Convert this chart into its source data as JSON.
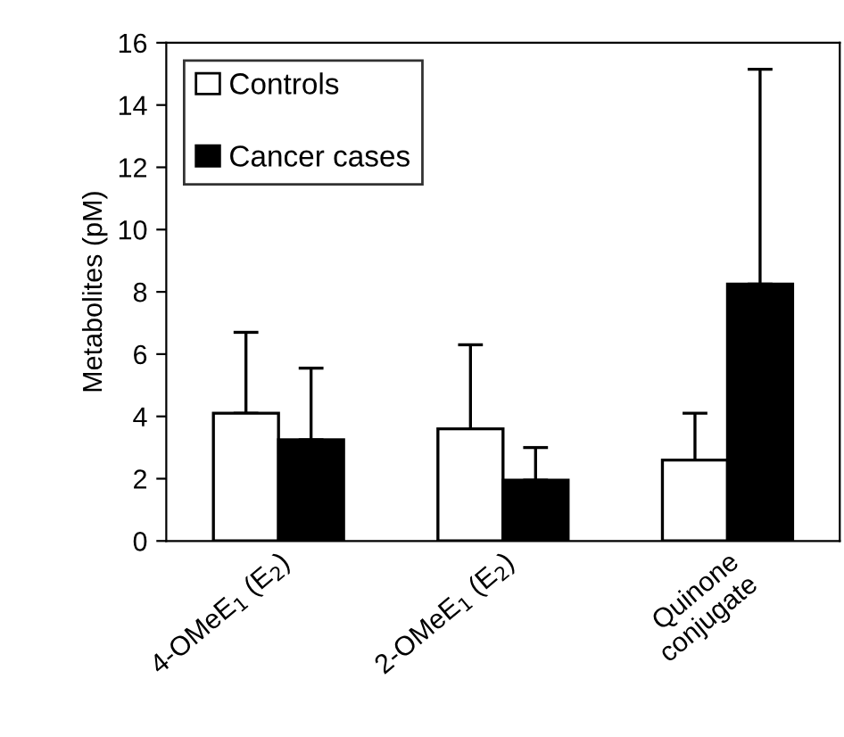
{
  "chart_data": {
    "type": "bar",
    "ylabel": "Metabolites (pM)",
    "categories": [
      "4-OMeE$_{1}$ (E$_{2}$)",
      "2-OMeE$_{1}$ (E$_{2}$)",
      "Quinone\nconjugate"
    ],
    "series": [
      {
        "name": "Controls",
        "color": "#ffffff",
        "values": [
          4.1,
          3.6,
          2.6
        ],
        "errors": [
          [
            4.1,
            6.7
          ],
          [
            3.6,
            6.3
          ],
          [
            2.6,
            4.1
          ]
        ]
      },
      {
        "name": "Cancer cases",
        "color": "#000000",
        "values": [
          3.25,
          1.95,
          8.25
        ],
        "errors": [
          [
            3.25,
            5.55
          ],
          [
            1.95,
            3.0
          ],
          [
            8.25,
            15.15
          ]
        ]
      }
    ],
    "ylim": [
      0,
      16
    ],
    "yticks": [
      0,
      2,
      4,
      6,
      8,
      10,
      12,
      14,
      16
    ],
    "grid": false,
    "legend": "top left"
  }
}
